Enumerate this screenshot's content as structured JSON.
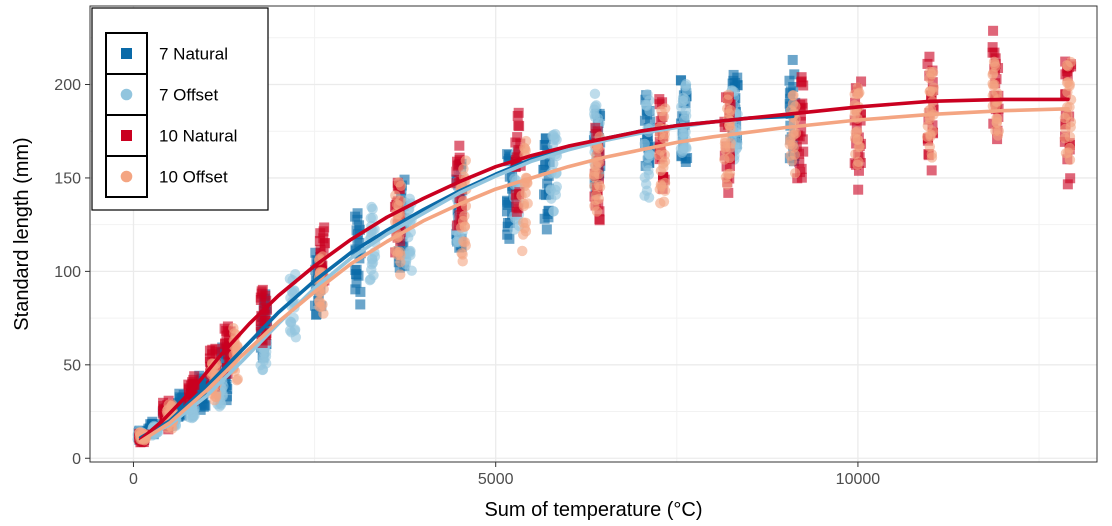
{
  "chart_data": {
    "type": "scatter",
    "title": "",
    "xlabel": "Sum of temperature (°C)",
    "ylabel": "Standard length (mm)",
    "xlim": [
      -600,
      13300
    ],
    "ylim": [
      -2,
      242
    ],
    "xticks": [
      0,
      5000,
      10000
    ],
    "yticks": [
      0,
      50,
      100,
      150,
      200
    ],
    "grid": true,
    "legend_position": "top-left",
    "series": [
      {
        "name": "7 Natural",
        "marker": "square",
        "color": "#0a6aa8",
        "scatter_columns": [
          {
            "x": 100,
            "ymin": 9,
            "ymax": 15
          },
          {
            "x": 250,
            "ymin": 12,
            "ymax": 20
          },
          {
            "x": 450,
            "ymin": 16,
            "ymax": 28
          },
          {
            "x": 650,
            "ymin": 20,
            "ymax": 36
          },
          {
            "x": 950,
            "ymin": 25,
            "ymax": 45
          },
          {
            "x": 1250,
            "ymin": 30,
            "ymax": 62
          },
          {
            "x": 1800,
            "ymin": 52,
            "ymax": 90
          },
          {
            "x": 2550,
            "ymin": 75,
            "ymax": 112
          },
          {
            "x": 3100,
            "ymin": 82,
            "ymax": 140
          },
          {
            "x": 3700,
            "ymin": 95,
            "ymax": 150
          },
          {
            "x": 4500,
            "ymin": 105,
            "ymax": 162
          },
          {
            "x": 5200,
            "ymin": 113,
            "ymax": 170
          },
          {
            "x": 5700,
            "ymin": 118,
            "ymax": 178
          },
          {
            "x": 6400,
            "ymin": 140,
            "ymax": 190
          },
          {
            "x": 7100,
            "ymin": 150,
            "ymax": 195
          },
          {
            "x": 7600,
            "ymin": 150,
            "ymax": 208
          },
          {
            "x": 8300,
            "ymin": 165,
            "ymax": 215
          },
          {
            "x": 9100,
            "ymin": 152,
            "ymax": 215
          }
        ],
        "curve": [
          [
            100,
            11
          ],
          [
            500,
            20
          ],
          [
            1000,
            38
          ],
          [
            1500,
            58
          ],
          [
            2000,
            78
          ],
          [
            2500,
            95
          ],
          [
            3000,
            110
          ],
          [
            3500,
            122
          ],
          [
            4000,
            133
          ],
          [
            4500,
            143
          ],
          [
            5000,
            152
          ],
          [
            5500,
            160
          ],
          [
            6000,
            166
          ],
          [
            6500,
            171
          ],
          [
            7000,
            175
          ],
          [
            7500,
            178
          ],
          [
            8000,
            180
          ],
          [
            8500,
            182
          ],
          [
            9100,
            183
          ]
        ]
      },
      {
        "name": "7 Offset",
        "marker": "circle",
        "color": "#92c5de",
        "scatter_columns": [
          {
            "x": 100,
            "ymin": 9,
            "ymax": 15
          },
          {
            "x": 300,
            "ymin": 12,
            "ymax": 18
          },
          {
            "x": 550,
            "ymin": 16,
            "ymax": 24
          },
          {
            "x": 800,
            "ymin": 20,
            "ymax": 32
          },
          {
            "x": 1200,
            "ymin": 26,
            "ymax": 48
          },
          {
            "x": 1800,
            "ymin": 46,
            "ymax": 70
          },
          {
            "x": 2200,
            "ymin": 60,
            "ymax": 100
          },
          {
            "x": 3300,
            "ymin": 90,
            "ymax": 138
          },
          {
            "x": 3800,
            "ymin": 98,
            "ymax": 145
          },
          {
            "x": 4500,
            "ymin": 108,
            "ymax": 155
          },
          {
            "x": 5300,
            "ymin": 120,
            "ymax": 172
          },
          {
            "x": 5800,
            "ymin": 128,
            "ymax": 182
          },
          {
            "x": 6400,
            "ymin": 150,
            "ymax": 195
          },
          {
            "x": 7100,
            "ymin": 128,
            "ymax": 200
          },
          {
            "x": 7600,
            "ymin": 155,
            "ymax": 202
          },
          {
            "x": 8300,
            "ymin": 155,
            "ymax": 200
          }
        ],
        "curve": [
          [
            100,
            10
          ],
          [
            500,
            18
          ],
          [
            1000,
            33
          ],
          [
            1500,
            52
          ],
          [
            2000,
            72
          ],
          [
            2500,
            91
          ],
          [
            3000,
            107
          ],
          [
            3500,
            120
          ],
          [
            4000,
            131
          ],
          [
            4500,
            142
          ],
          [
            5000,
            151
          ],
          [
            5500,
            159
          ],
          [
            6000,
            165
          ],
          [
            6500,
            170
          ],
          [
            7000,
            174
          ],
          [
            7500,
            177
          ],
          [
            8000,
            180
          ],
          [
            8300,
            181
          ]
        ]
      },
      {
        "name": "10 Natural",
        "marker": "square",
        "color": "#ca0020",
        "scatter_columns": [
          {
            "x": 120,
            "ymin": 8,
            "ymax": 14
          },
          {
            "x": 450,
            "ymin": 15,
            "ymax": 32
          },
          {
            "x": 800,
            "ymin": 28,
            "ymax": 44
          },
          {
            "x": 1100,
            "ymin": 36,
            "ymax": 62
          },
          {
            "x": 1300,
            "ymin": 45,
            "ymax": 73
          },
          {
            "x": 1800,
            "ymin": 58,
            "ymax": 95
          },
          {
            "x": 2600,
            "ymin": 92,
            "ymax": 124
          },
          {
            "x": 3650,
            "ymin": 110,
            "ymax": 152
          },
          {
            "x": 4500,
            "ymin": 118,
            "ymax": 170
          },
          {
            "x": 5300,
            "ymin": 125,
            "ymax": 192
          },
          {
            "x": 6400,
            "ymin": 125,
            "ymax": 180
          },
          {
            "x": 7300,
            "ymin": 140,
            "ymax": 195
          },
          {
            "x": 8200,
            "ymin": 140,
            "ymax": 205
          },
          {
            "x": 9200,
            "ymin": 145,
            "ymax": 210
          },
          {
            "x": 10000,
            "ymin": 143,
            "ymax": 205
          },
          {
            "x": 11000,
            "ymin": 153,
            "ymax": 218
          },
          {
            "x": 11900,
            "ymin": 168,
            "ymax": 230
          },
          {
            "x": 12900,
            "ymin": 142,
            "ymax": 228
          }
        ],
        "curve": [
          [
            100,
            10
          ],
          [
            400,
            20
          ],
          [
            800,
            36
          ],
          [
            1200,
            55
          ],
          [
            1600,
            72
          ],
          [
            2000,
            87
          ],
          [
            2500,
            103
          ],
          [
            3000,
            117
          ],
          [
            3500,
            129
          ],
          [
            4000,
            139
          ],
          [
            4500,
            148
          ],
          [
            5000,
            156
          ],
          [
            5500,
            162
          ],
          [
            6000,
            167
          ],
          [
            6500,
            171
          ],
          [
            7000,
            175
          ],
          [
            7500,
            178
          ],
          [
            8000,
            180
          ],
          [
            9000,
            184
          ],
          [
            10000,
            188
          ],
          [
            11000,
            191
          ],
          [
            12000,
            192
          ],
          [
            12900,
            192
          ]
        ]
      },
      {
        "name": "10 Offset",
        "marker": "circle",
        "color": "#f4a582",
        "scatter_columns": [
          {
            "x": 130,
            "ymin": 9,
            "ymax": 14
          },
          {
            "x": 500,
            "ymin": 15,
            "ymax": 30
          },
          {
            "x": 1100,
            "ymin": 30,
            "ymax": 55
          },
          {
            "x": 1400,
            "ymin": 38,
            "ymax": 70
          },
          {
            "x": 2600,
            "ymin": 74,
            "ymax": 110
          },
          {
            "x": 3650,
            "ymin": 95,
            "ymax": 152
          },
          {
            "x": 4550,
            "ymin": 98,
            "ymax": 165
          },
          {
            "x": 5400,
            "ymin": 110,
            "ymax": 175
          },
          {
            "x": 6400,
            "ymin": 125,
            "ymax": 180
          },
          {
            "x": 7300,
            "ymin": 130,
            "ymax": 190
          },
          {
            "x": 8200,
            "ymin": 142,
            "ymax": 200
          },
          {
            "x": 9100,
            "ymin": 150,
            "ymax": 200
          },
          {
            "x": 10000,
            "ymin": 155,
            "ymax": 205
          },
          {
            "x": 11000,
            "ymin": 160,
            "ymax": 212
          },
          {
            "x": 11900,
            "ymin": 170,
            "ymax": 215
          },
          {
            "x": 12900,
            "ymin": 155,
            "ymax": 215
          }
        ],
        "curve": [
          [
            100,
            9
          ],
          [
            500,
            19
          ],
          [
            1000,
            36
          ],
          [
            1500,
            55
          ],
          [
            2000,
            73
          ],
          [
            2500,
            89
          ],
          [
            3000,
            104
          ],
          [
            3500,
            116
          ],
          [
            4000,
            127
          ],
          [
            4500,
            136
          ],
          [
            5000,
            144
          ],
          [
            5500,
            150
          ],
          [
            6000,
            156
          ],
          [
            6500,
            161
          ],
          [
            7000,
            165
          ],
          [
            7500,
            169
          ],
          [
            8000,
            172
          ],
          [
            9000,
            177
          ],
          [
            10000,
            181
          ],
          [
            11000,
            184
          ],
          [
            12000,
            186
          ],
          [
            12900,
            187
          ]
        ]
      }
    ]
  }
}
